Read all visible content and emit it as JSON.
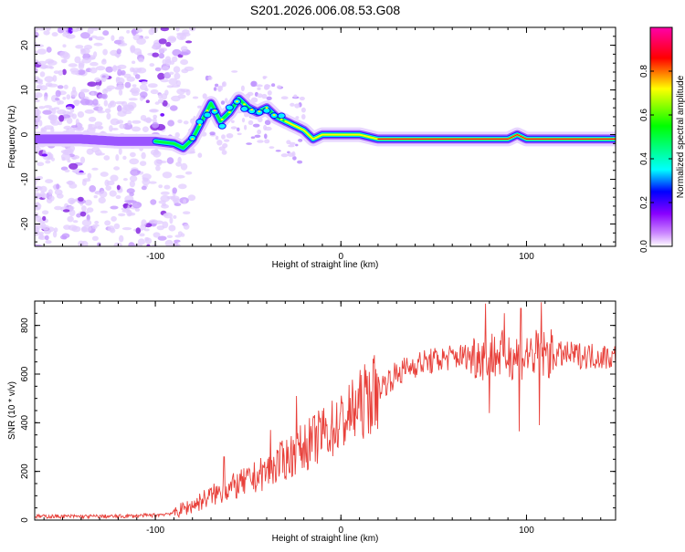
{
  "page": {
    "title": "S201.2026.006.08.53.G08"
  },
  "chart_data": [
    {
      "type": "heatmap",
      "title": "S201.2026.006.08.53.G08",
      "xlabel": "Height of straight line (km)",
      "ylabel": "Frequency (Hz)",
      "xlim": [
        -165,
        148
      ],
      "ylim": [
        -25,
        24
      ],
      "xticks": [
        -100,
        0,
        100
      ],
      "yticks": [
        -20,
        -10,
        0,
        10,
        20
      ],
      "colorbar": {
        "label": "Normalized spectral amplitude",
        "range": [
          0,
          1
        ],
        "ticks": [
          "0.0",
          "0.2",
          "0.4",
          "0.6",
          "0.8"
        ],
        "colors": [
          "#ffffff",
          "#cc88ff",
          "#8800ff",
          "#0000ff",
          "#00ffff",
          "#00ff00",
          "#ffff00",
          "#ff0000",
          "#ff00aa"
        ]
      },
      "ridge": {
        "x": [
          -165,
          -140,
          -120,
          -100,
          -90,
          -85,
          -80,
          -75,
          -70,
          -65,
          -60,
          -55,
          -50,
          -45,
          -40,
          -35,
          -30,
          -25,
          -20,
          -15,
          -10,
          -5,
          0,
          10,
          20,
          30,
          50,
          70,
          80,
          85,
          90,
          95,
          100,
          110,
          120,
          148
        ],
        "y": [
          -1,
          -1,
          -1.5,
          -1.5,
          -2,
          -3,
          -1,
          3,
          7,
          3,
          5,
          8,
          6,
          5,
          6,
          4,
          3,
          2,
          1,
          -1,
          0,
          0,
          0,
          0,
          -1,
          -1,
          -1,
          -1,
          -1,
          -1,
          -1,
          0,
          -1,
          -1,
          -1,
          -1
        ]
      }
    },
    {
      "type": "line",
      "xlabel": "Height of straight line (km)",
      "ylabel": "SNR (10 * v/v)",
      "xlim": [
        -165,
        148
      ],
      "ylim": [
        0,
        900
      ],
      "xticks": [
        -100,
        0,
        100
      ],
      "yticks": [
        0,
        200,
        400,
        600,
        800
      ],
      "color": "#e8403a",
      "trend": {
        "x": [
          -165,
          -120,
          -100,
          -90,
          -80,
          -70,
          -60,
          -50,
          -40,
          -30,
          -20,
          -10,
          0,
          10,
          20,
          30,
          40,
          60,
          80,
          100,
          120,
          148
        ],
        "y": [
          15,
          15,
          20,
          30,
          60,
          100,
          130,
          160,
          200,
          250,
          300,
          350,
          400,
          470,
          540,
          600,
          640,
          670,
          680,
          680,
          680,
          670
        ]
      },
      "spikes": [
        {
          "x": -63,
          "y": 260
        },
        {
          "x": -38,
          "y": 370
        },
        {
          "x": -24,
          "y": 510
        },
        {
          "x": -10,
          "y": 450
        },
        {
          "x": 78,
          "y": 890
        },
        {
          "x": 88,
          "y": 850
        },
        {
          "x": 97,
          "y": 870
        },
        {
          "x": 108,
          "y": 895
        },
        {
          "x": 80,
          "y": 440
        },
        {
          "x": 96,
          "y": 365
        },
        {
          "x": 107,
          "y": 390
        }
      ]
    }
  ]
}
